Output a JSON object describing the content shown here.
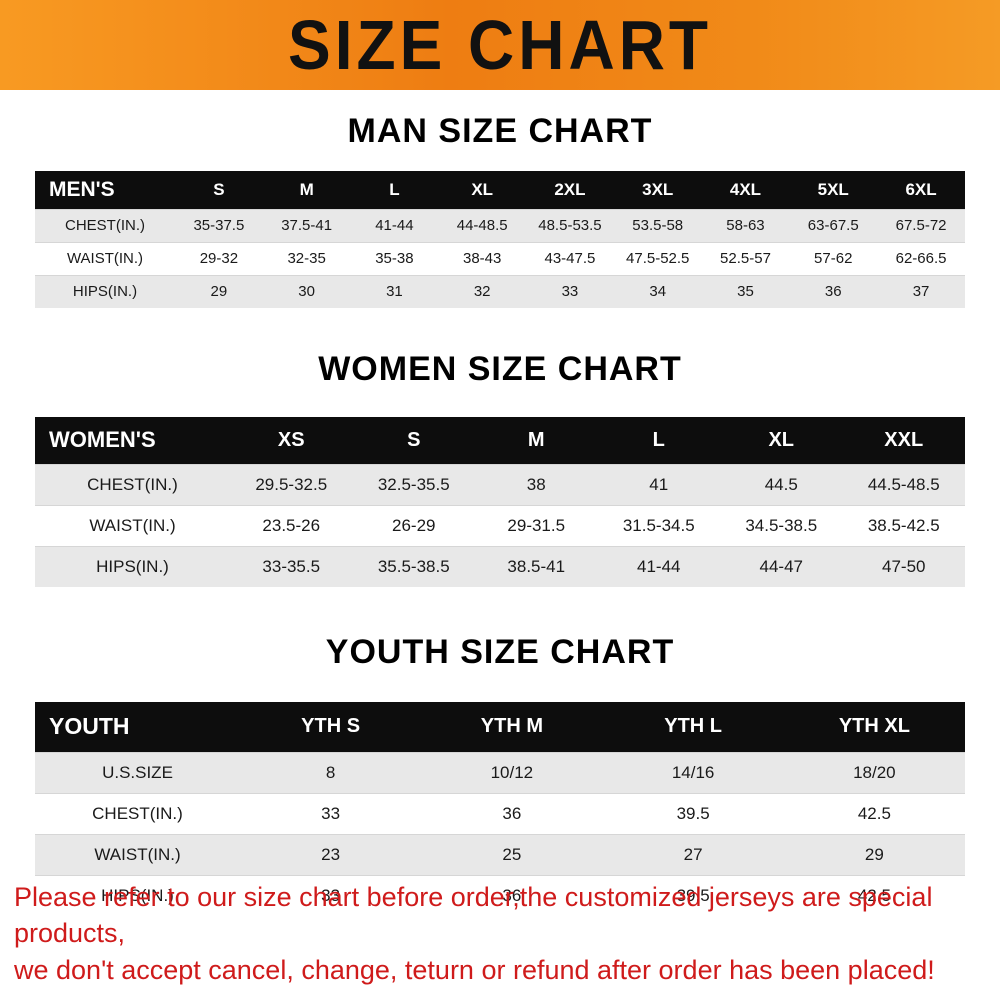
{
  "banner": {
    "title": "SIZE CHART"
  },
  "sections": [
    {
      "heading": "MAN SIZE CHART"
    },
    {
      "heading": "WOMEN SIZE CHART"
    },
    {
      "heading": "YOUTH SIZE CHART"
    }
  ],
  "chart_data": [
    {
      "type": "table",
      "title": "MAN SIZE CHART",
      "columns": [
        "MEN'S",
        "S",
        "M",
        "L",
        "XL",
        "2XL",
        "3XL",
        "4XL",
        "5XL",
        "6XL"
      ],
      "rows": [
        [
          "CHEST(IN.)",
          "35-37.5",
          "37.5-41",
          "41-44",
          "44-48.5",
          "48.5-53.5",
          "53.5-58",
          "58-63",
          "63-67.5",
          "67.5-72"
        ],
        [
          "WAIST(IN.)",
          "29-32",
          "32-35",
          "35-38",
          "38-43",
          "43-47.5",
          "47.5-52.5",
          "52.5-57",
          "57-62",
          "62-66.5"
        ],
        [
          "HIPS(IN.)",
          "29",
          "30",
          "31",
          "32",
          "33",
          "34",
          "35",
          "36",
          "37"
        ]
      ]
    },
    {
      "type": "table",
      "title": "WOMEN SIZE CHART",
      "columns": [
        "WOMEN'S",
        "XS",
        "S",
        "M",
        "L",
        "XL",
        "XXL"
      ],
      "rows": [
        [
          "CHEST(IN.)",
          "29.5-32.5",
          "32.5-35.5",
          "38",
          "41",
          "44.5",
          "44.5-48.5"
        ],
        [
          "WAIST(IN.)",
          "23.5-26",
          "26-29",
          "29-31.5",
          "31.5-34.5",
          "34.5-38.5",
          "38.5-42.5"
        ],
        [
          "HIPS(IN.)",
          "33-35.5",
          "35.5-38.5",
          "38.5-41",
          "41-44",
          "44-47",
          "47-50"
        ]
      ]
    },
    {
      "type": "table",
      "title": "YOUTH SIZE CHART",
      "columns": [
        "YOUTH",
        "YTH S",
        "YTH M",
        "YTH L",
        "YTH XL"
      ],
      "rows": [
        [
          "U.S.SIZE",
          "8",
          "10/12",
          "14/16",
          "18/20"
        ],
        [
          "CHEST(IN.)",
          "33",
          "36",
          "39.5",
          "42.5"
        ],
        [
          "WAIST(IN.)",
          "23",
          "25",
          "27",
          "29"
        ],
        [
          "HIPS(IN.)",
          "33",
          "36",
          "39.5",
          "42.5"
        ]
      ]
    }
  ],
  "footer": {
    "lines": [
      "Please refer to our size chart before order,the customized jerseys are special products,",
      "we don't accept cancel, change, teturn or refund after order has been placed!"
    ]
  },
  "colors": {
    "banner_orange": "#f08a18",
    "header_black": "#0d0d0d",
    "row_gray": "#e8e8e8",
    "footer_red": "#cf1b1b"
  }
}
